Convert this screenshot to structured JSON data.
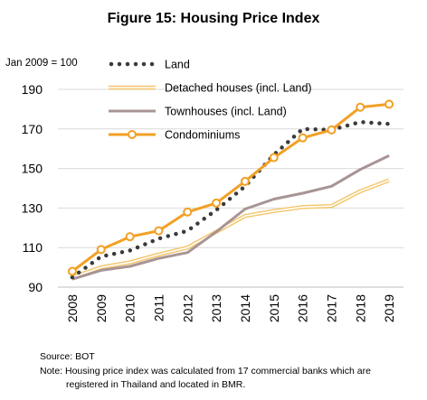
{
  "chart_data": {
    "type": "line",
    "title": "Figure 15: Housing Price Index",
    "ylabel": "Jan 2009 = 100",
    "xlabel": "",
    "x": [
      "2008",
      "2009",
      "2010",
      "2011",
      "2012",
      "2013",
      "2014",
      "2015",
      "2016",
      "2017",
      "2018",
      "2019"
    ],
    "ylim": [
      90,
      190
    ],
    "yticks": [
      90,
      110,
      130,
      150,
      170,
      190
    ],
    "grid": "horizontal",
    "legend_position": "top-left",
    "series": [
      {
        "name": "Land",
        "style": "dotted",
        "color": "#3a3a3a",
        "values": [
          95.0,
          105.5,
          108.5,
          114.5,
          118.5,
          129.0,
          141.0,
          157.0,
          170.0,
          169.5,
          173.5,
          172.5
        ]
      },
      {
        "name": "Detached houses (incl. Land)",
        "style": "double-line",
        "color": "#f4c56a",
        "values": [
          95.0,
          100.0,
          102.5,
          106.5,
          110.0,
          118.0,
          126.0,
          128.5,
          130.5,
          131.0,
          138.5,
          144.0
        ]
      },
      {
        "name": "Townhouses (incl. Land)",
        "style": "solid",
        "color": "#a89494",
        "values": [
          94.0,
          98.5,
          100.5,
          104.5,
          107.5,
          118.0,
          129.5,
          134.5,
          137.5,
          141.0,
          149.5,
          156.5
        ]
      },
      {
        "name": "Condominiums",
        "style": "solid-markers",
        "color": "#f2a024",
        "values": [
          98.0,
          109.0,
          115.5,
          118.5,
          128.0,
          132.5,
          143.5,
          155.5,
          165.5,
          169.5,
          181.0,
          182.5
        ]
      }
    ]
  },
  "footer": {
    "source": "Source: BOT",
    "note_line1": "Note: Housing price index was calculated from 17 commercial banks which are",
    "note_line2": "registered in Thailand and located in BMR."
  }
}
